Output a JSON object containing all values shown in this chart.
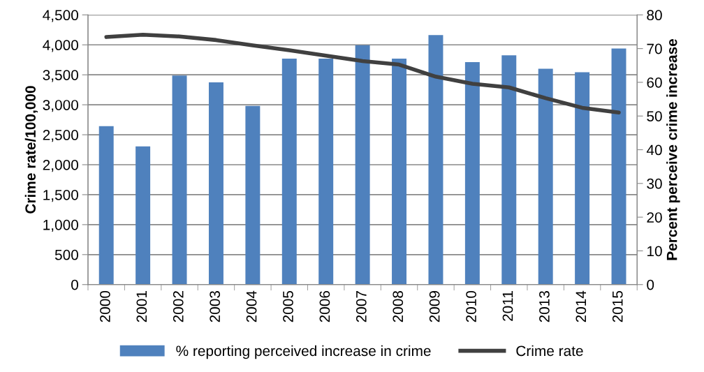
{
  "chart_data": {
    "type": "bar",
    "categories": [
      "2000",
      "2001",
      "2002",
      "2003",
      "2004",
      "2005",
      "2006",
      "2007",
      "2008",
      "2009",
      "2010",
      "2011",
      "2013",
      "2014",
      "2015"
    ],
    "series": [
      {
        "name": "% reporting perceived increase in crime",
        "axis": "y2",
        "color": "#4f81bd",
        "values": [
          47,
          41,
          62,
          60,
          53,
          67,
          67,
          71,
          67,
          74,
          66,
          68,
          64,
          63,
          70
        ]
      },
      {
        "name": "Crime rate",
        "type": "line",
        "color": "#404040",
        "values": [
          4130,
          4170,
          4140,
          4080,
          3990,
          3910,
          3820,
          3730,
          3670,
          3470,
          3350,
          3290,
          3110,
          2950,
          2870
        ]
      }
    ],
    "ylabel": "Crime rate/100,000",
    "y2label": "Percent perceive crime increase",
    "ylim": [
      0,
      4500
    ],
    "yticks": [
      0,
      500,
      {
        "value": 1000,
        "label": "1,000"
      },
      {
        "value": 1500,
        "label": "1,500"
      },
      {
        "value": 2000,
        "label": "2,000"
      },
      {
        "value": 2500,
        "label": "2,500"
      },
      {
        "value": 3000,
        "label": "3,000"
      },
      {
        "value": 3500,
        "label": "3,500"
      },
      {
        "value": 4000,
        "label": "4,000"
      },
      {
        "value": 4500,
        "label": "4,500"
      }
    ],
    "y2lim": [
      0,
      80
    ],
    "y2ticks": [
      0,
      10,
      20,
      30,
      40,
      50,
      60,
      70,
      80
    ],
    "grid": "y",
    "legend": "bottom",
    "marker": "none",
    "line_style": "solid"
  }
}
